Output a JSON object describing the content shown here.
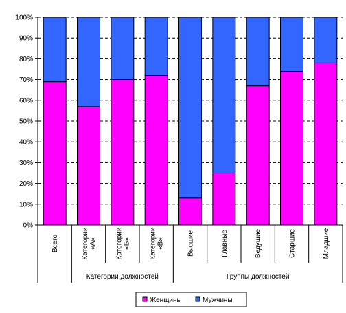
{
  "chart_data": {
    "type": "bar",
    "stacked": true,
    "percent": true,
    "categories": [
      [
        "Всего"
      ],
      [
        "Категории",
        "«А»"
      ],
      [
        "Категории",
        "«Б»"
      ],
      [
        "Категории",
        "«В»"
      ],
      [
        "Высшие"
      ],
      [
        "Главные"
      ],
      [
        "Ведущие"
      ],
      [
        "Старшие"
      ],
      [
        "Младшие"
      ]
    ],
    "groups": [
      {
        "label": "",
        "start": 0,
        "end": 0
      },
      {
        "label": "Категории должностей",
        "start": 1,
        "end": 3
      },
      {
        "label": "Группы должностей",
        "start": 4,
        "end": 8
      }
    ],
    "series": [
      {
        "name": "Женщины",
        "color": "#ff00ff",
        "values": [
          69,
          57,
          70,
          72,
          13,
          25,
          67,
          74,
          78
        ]
      },
      {
        "name": "Мужчины",
        "color": "#3366ff",
        "values": [
          31,
          43,
          30,
          28,
          87,
          75,
          33,
          26,
          22
        ]
      }
    ],
    "ylim": [
      0,
      100
    ],
    "yticks": [
      "0%",
      "10%",
      "20%",
      "30%",
      "40%",
      "50%",
      "60%",
      "70%",
      "80%",
      "90%",
      "100%"
    ],
    "grid": true,
    "legend_position": "bottom"
  }
}
